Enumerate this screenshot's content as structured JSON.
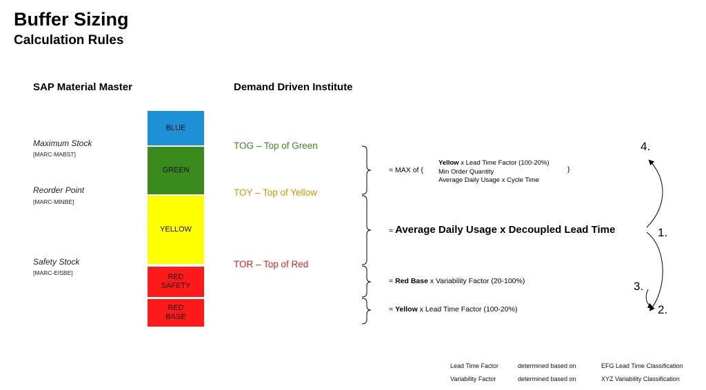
{
  "title": "Buffer Sizing",
  "subtitle": "Calculation Rules",
  "columns": {
    "sap": "SAP Material Master",
    "ddi": "Demand Driven Institute"
  },
  "sap_fields": [
    {
      "name": "Maximum Stock",
      "code": "[MARC-MABST]"
    },
    {
      "name": "Reorder Point",
      "code": "[MARC-MINBE]"
    },
    {
      "name": "Safety Stock",
      "code": "[MARC-EISBE]"
    }
  ],
  "zones": [
    {
      "label": "BLUE",
      "color": "#1E90D6"
    },
    {
      "label": "GREEN",
      "color": "#3A8A1E"
    },
    {
      "label": "YELLOW",
      "color": "#FFFF00"
    },
    {
      "label": "RED\nSAFETY",
      "color": "#FF1A1A"
    },
    {
      "label": "RED\nBASE",
      "color": "#FF1A1A"
    }
  ],
  "ddi_levels": [
    {
      "label": "TOG – Top of Green",
      "color": "#3A8A1E"
    },
    {
      "label": "TOY – Top of Yellow",
      "color": "#C89A00"
    },
    {
      "label": "TOR – Top of Red",
      "color": "#E8201E"
    }
  ],
  "formulas": {
    "green": {
      "prefix": "= MAX of {",
      "line1_bold": "Yellow",
      "line1_rest": " x Lead Time Factor (100-20%)",
      "line2": "Min Order Quantity",
      "line3": "Average Daily Usage x Cycle Time",
      "close": "}"
    },
    "yellow": {
      "prefix": "= ",
      "text": "Average Daily Usage x Decoupled Lead Time"
    },
    "red_safety": {
      "prefix": "= ",
      "bold": "Red Base",
      "rest": " x Variability Factor (20-100%)"
    },
    "red_base": {
      "prefix": "= ",
      "bold": "Yellow",
      "rest": " x Lead Time Factor (100-20%)"
    }
  },
  "steps": [
    "1.",
    "2.",
    "3.",
    "4."
  ],
  "notes": [
    {
      "factor": "Lead Time Factor",
      "link": "determined based on",
      "source": "EFG Lead Time Classification"
    },
    {
      "factor": "Variability Factor",
      "link": "determined based on",
      "source": "XYZ Variability Classification"
    }
  ]
}
